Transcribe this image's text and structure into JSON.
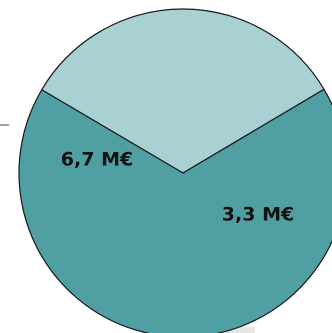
{
  "chart_data": {
    "type": "pie",
    "title": "",
    "unit": "M€",
    "slices": [
      {
        "label": "6,7 M€",
        "value": 6.7,
        "color": "#4f9fa3"
      },
      {
        "label": "3,3 M€",
        "value": 3.3,
        "color": "#a9d1d3"
      }
    ],
    "legend": "none"
  }
}
